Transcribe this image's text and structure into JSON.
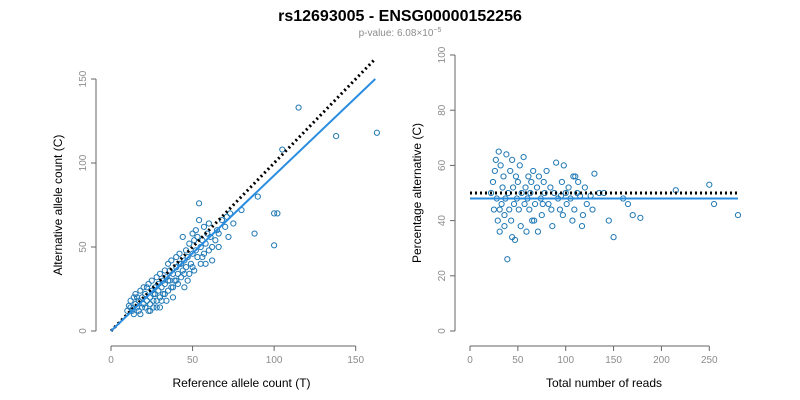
{
  "title": "rs12693005 - ENSG00000152256",
  "subtitle_prefix": "p-value: 6.08",
  "subtitle_exp": "×10",
  "subtitle_pow": "−5",
  "colors": {
    "point": "#1f78b4",
    "fit": "#2a8de0",
    "reference": "#000000"
  },
  "chart_data": [
    {
      "type": "scatter",
      "xlabel": "Reference allele count (T)",
      "ylabel": "Alternative allele count (C)",
      "xlim": [
        0,
        160
      ],
      "ylim": [
        0,
        150
      ],
      "xticks": [
        0,
        50,
        100,
        150
      ],
      "yticks": [
        0,
        50,
        100,
        150
      ],
      "lines": {
        "fit": {
          "style": "solid",
          "color": "#2a8de0",
          "from": [
            0,
            0
          ],
          "to": [
            162,
            150
          ]
        },
        "reference": {
          "style": "dotted",
          "color": "#000000",
          "from": [
            0,
            0
          ],
          "to": [
            162,
            162
          ]
        }
      },
      "points": [
        [
          10,
          12
        ],
        [
          11,
          15
        ],
        [
          12,
          18
        ],
        [
          12,
          14
        ],
        [
          13,
          12
        ],
        [
          14,
          10
        ],
        [
          14,
          20
        ],
        [
          15,
          16
        ],
        [
          15,
          22
        ],
        [
          16,
          14
        ],
        [
          17,
          18
        ],
        [
          17,
          12
        ],
        [
          18,
          24
        ],
        [
          18,
          10
        ],
        [
          19,
          20
        ],
        [
          20,
          16
        ],
        [
          20,
          26
        ],
        [
          21,
          14
        ],
        [
          21,
          22
        ],
        [
          22,
          18
        ],
        [
          23,
          12
        ],
        [
          23,
          28
        ],
        [
          24,
          20
        ],
        [
          24,
          16
        ],
        [
          25,
          24
        ],
        [
          25,
          30
        ],
        [
          26,
          18
        ],
        [
          26,
          14
        ],
        [
          27,
          26
        ],
        [
          27,
          22
        ],
        [
          28,
          32
        ],
        [
          28,
          18
        ],
        [
          29,
          28
        ],
        [
          29,
          24
        ],
        [
          30,
          34
        ],
        [
          30,
          20
        ],
        [
          30,
          14
        ],
        [
          31,
          26
        ],
        [
          32,
          30
        ],
        [
          32,
          22
        ],
        [
          33,
          36
        ],
        [
          33,
          28
        ],
        [
          34,
          18
        ],
        [
          34,
          32
        ],
        [
          35,
          40
        ],
        [
          35,
          24
        ],
        [
          36,
          30
        ],
        [
          36,
          36
        ],
        [
          37,
          26
        ],
        [
          37,
          42
        ],
        [
          38,
          34
        ],
        [
          38,
          20
        ],
        [
          39,
          30
        ],
        [
          40,
          38
        ],
        [
          40,
          44
        ],
        [
          41,
          28
        ],
        [
          41,
          34
        ],
        [
          42,
          40
        ],
        [
          42,
          46
        ],
        [
          43,
          32
        ],
        [
          44,
          36
        ],
        [
          44,
          56
        ],
        [
          45,
          42
        ],
        [
          45,
          26
        ],
        [
          46,
          38
        ],
        [
          46,
          48
        ],
        [
          47,
          44
        ],
        [
          48,
          34
        ],
        [
          48,
          52
        ],
        [
          49,
          40
        ],
        [
          50,
          46
        ],
        [
          50,
          58
        ],
        [
          51,
          54
        ],
        [
          51,
          36
        ],
        [
          52,
          48
        ],
        [
          52,
          60
        ],
        [
          53,
          44
        ],
        [
          54,
          76
        ],
        [
          54,
          66
        ],
        [
          55,
          50
        ],
        [
          55,
          40
        ],
        [
          56,
          54
        ],
        [
          57,
          62
        ],
        [
          57,
          46
        ],
        [
          58,
          52
        ],
        [
          59,
          58
        ],
        [
          60,
          48
        ],
        [
          60,
          64
        ],
        [
          61,
          56
        ],
        [
          62,
          42
        ],
        [
          64,
          54
        ],
        [
          65,
          60
        ],
        [
          66,
          50
        ],
        [
          68,
          66
        ],
        [
          70,
          62
        ],
        [
          71,
          68
        ],
        [
          72,
          56
        ],
        [
          73,
          70
        ],
        [
          75,
          64
        ],
        [
          80,
          72
        ],
        [
          88,
          58
        ],
        [
          90,
          80
        ],
        [
          100,
          70
        ],
        [
          102,
          70
        ],
        [
          100,
          51
        ],
        [
          105,
          108
        ],
        [
          115,
          133
        ],
        [
          138,
          116
        ],
        [
          163,
          118
        ],
        [
          16,
          20
        ],
        [
          19,
          14
        ],
        [
          22,
          26
        ],
        [
          24,
          12
        ],
        [
          26,
          22
        ],
        [
          28,
          14
        ],
        [
          31,
          18
        ],
        [
          33,
          22
        ],
        [
          35,
          30
        ],
        [
          38,
          26
        ],
        [
          40,
          30
        ],
        [
          43,
          40
        ],
        [
          45,
          34
        ],
        [
          47,
          30
        ],
        [
          50,
          38
        ],
        [
          53,
          56
        ],
        [
          56,
          44
        ],
        [
          58,
          40
        ],
        [
          62,
          50
        ],
        [
          66,
          58
        ]
      ]
    },
    {
      "type": "scatter",
      "xlabel": "Total number of reads",
      "ylabel": "Percentage alternative (C)",
      "xlim": [
        0,
        280
      ],
      "ylim": [
        0,
        100
      ],
      "xticks": [
        0,
        50,
        100,
        150,
        200,
        250
      ],
      "yticks": [
        0,
        20,
        40,
        60,
        80,
        100
      ],
      "lines": {
        "fit": {
          "style": "solid",
          "color": "#2a8de0",
          "from": [
            0,
            48
          ],
          "to": [
            280,
            48
          ]
        },
        "reference": {
          "style": "dotted",
          "color": "#000000",
          "from": [
            0,
            50
          ],
          "to": [
            280,
            50
          ]
        }
      },
      "points": [
        [
          22,
          50
        ],
        [
          24,
          54
        ],
        [
          25,
          44
        ],
        [
          26,
          58
        ],
        [
          27,
          62
        ],
        [
          28,
          48
        ],
        [
          29,
          40
        ],
        [
          30,
          65
        ],
        [
          31,
          36
        ],
        [
          32,
          60
        ],
        [
          33,
          46
        ],
        [
          34,
          52
        ],
        [
          35,
          56
        ],
        [
          36,
          42
        ],
        [
          37,
          48
        ],
        [
          38,
          64
        ],
        [
          39,
          26
        ],
        [
          40,
          50
        ],
        [
          41,
          44
        ],
        [
          42,
          58
        ],
        [
          43,
          40
        ],
        [
          44,
          62
        ],
        [
          45,
          52
        ],
        [
          46,
          46
        ],
        [
          47,
          33
        ],
        [
          48,
          56
        ],
        [
          49,
          48
        ],
        [
          50,
          54
        ],
        [
          51,
          44
        ],
        [
          52,
          60
        ],
        [
          53,
          38
        ],
        [
          54,
          50
        ],
        [
          56,
          63
        ],
        [
          57,
          46
        ],
        [
          58,
          52
        ],
        [
          60,
          48
        ],
        [
          61,
          56
        ],
        [
          62,
          44
        ],
        [
          63,
          50
        ],
        [
          64,
          54
        ],
        [
          65,
          40
        ],
        [
          66,
          58
        ],
        [
          68,
          46
        ],
        [
          70,
          52
        ],
        [
          71,
          36
        ],
        [
          72,
          56
        ],
        [
          74,
          48
        ],
        [
          75,
          42
        ],
        [
          77,
          54
        ],
        [
          78,
          50
        ],
        [
          80,
          58
        ],
        [
          82,
          46
        ],
        [
          84,
          52
        ],
        [
          86,
          38
        ],
        [
          88,
          50
        ],
        [
          90,
          61
        ],
        [
          92,
          48
        ],
        [
          94,
          44
        ],
        [
          96,
          54
        ],
        [
          97,
          42
        ],
        [
          98,
          60
        ],
        [
          100,
          50
        ],
        [
          101,
          46
        ],
        [
          103,
          52
        ],
        [
          105,
          48
        ],
        [
          107,
          40
        ],
        [
          109,
          44
        ],
        [
          110,
          56
        ],
        [
          112,
          50
        ],
        [
          113,
          54
        ],
        [
          115,
          49
        ],
        [
          117,
          38
        ],
        [
          120,
          52
        ],
        [
          122,
          46
        ],
        [
          126,
          49
        ],
        [
          130,
          57
        ],
        [
          135,
          50
        ],
        [
          150,
          34
        ],
        [
          165,
          46
        ],
        [
          170,
          42
        ],
        [
          178,
          41
        ],
        [
          215,
          51
        ],
        [
          250,
          53
        ],
        [
          255,
          46
        ],
        [
          280,
          42
        ],
        [
          145,
          40
        ],
        [
          160,
          48
        ],
        [
          140,
          50
        ],
        [
          128,
          44
        ],
        [
          118,
          42
        ],
        [
          108,
          56
        ],
        [
          95,
          49
        ],
        [
          85,
          44
        ],
        [
          76,
          46
        ],
        [
          67,
          40
        ],
        [
          59,
          36
        ],
        [
          44,
          34
        ],
        [
          36,
          38
        ],
        [
          31,
          44
        ]
      ]
    }
  ]
}
